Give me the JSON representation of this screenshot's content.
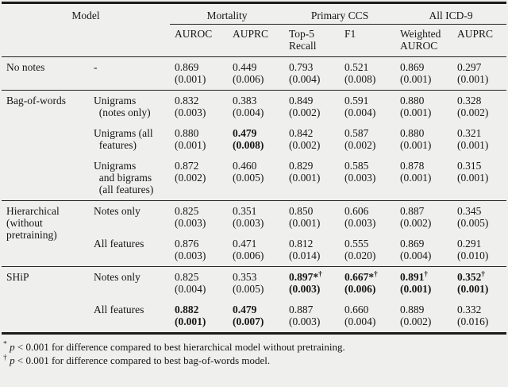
{
  "table": {
    "model_header": "Model",
    "groups": [
      {
        "label": "Mortality"
      },
      {
        "label": "Primary CCS"
      },
      {
        "label": "All ICD-9"
      }
    ],
    "columns": [
      "AUROC",
      "AUPRC",
      "Top-5\nRecall",
      "F1",
      "Weighted\nAUROC",
      "AUPRC"
    ],
    "sections": [
      {
        "model": "No notes",
        "rows": [
          {
            "variant": "-",
            "cells": [
              {
                "v": "0.869",
                "sd": "(0.001)"
              },
              {
                "v": "0.449",
                "sd": "(0.006)"
              },
              {
                "v": "0.793",
                "sd": "(0.004)"
              },
              {
                "v": "0.521",
                "sd": "(0.008)"
              },
              {
                "v": "0.869",
                "sd": "(0.001)"
              },
              {
                "v": "0.297",
                "sd": "(0.001)"
              }
            ]
          }
        ]
      },
      {
        "model": "Bag-of-words",
        "rows": [
          {
            "variant": "Unigrams\n  (notes only)",
            "cells": [
              {
                "v": "0.832",
                "sd": "(0.003)"
              },
              {
                "v": "0.383",
                "sd": "(0.004)"
              },
              {
                "v": "0.849",
                "sd": "(0.002)"
              },
              {
                "v": "0.591",
                "sd": "(0.004)"
              },
              {
                "v": "0.880",
                "sd": "(0.001)"
              },
              {
                "v": "0.328",
                "sd": "(0.002)"
              }
            ]
          },
          {
            "variant": "Unigrams (all\n  features)",
            "cells": [
              {
                "v": "0.880",
                "sd": "(0.001)"
              },
              {
                "v": "0.479",
                "sd": "(0.008)",
                "bold": true
              },
              {
                "v": "0.842",
                "sd": "(0.002)"
              },
              {
                "v": "0.587",
                "sd": "(0.002)"
              },
              {
                "v": "0.880",
                "sd": "(0.001)"
              },
              {
                "v": "0.321",
                "sd": "(0.001)"
              }
            ]
          },
          {
            "variant": "Unigrams\n  and bigrams\n  (all features)",
            "cells": [
              {
                "v": "0.872",
                "sd": "(0.002)"
              },
              {
                "v": "0.460",
                "sd": "(0.005)"
              },
              {
                "v": "0.829",
                "sd": "(0.001)"
              },
              {
                "v": "0.585",
                "sd": "(0.003)"
              },
              {
                "v": "0.878",
                "sd": "(0.001)"
              },
              {
                "v": "0.315",
                "sd": "(0.001)"
              }
            ]
          }
        ]
      },
      {
        "model": "Hierarchical\n(without\npretraining)",
        "rows": [
          {
            "variant": "Notes only",
            "cells": [
              {
                "v": "0.825",
                "sd": "(0.003)"
              },
              {
                "v": "0.351",
                "sd": "(0.003)"
              },
              {
                "v": "0.850",
                "sd": "(0.001)"
              },
              {
                "v": "0.606",
                "sd": "(0.003)"
              },
              {
                "v": "0.887",
                "sd": "(0.002)"
              },
              {
                "v": "0.345",
                "sd": "(0.005)"
              }
            ]
          },
          {
            "variant": "All features",
            "cells": [
              {
                "v": "0.876",
                "sd": "(0.003)"
              },
              {
                "v": "0.471",
                "sd": "(0.006)"
              },
              {
                "v": "0.812",
                "sd": "(0.014)"
              },
              {
                "v": "0.555",
                "sd": "(0.020)"
              },
              {
                "v": "0.869",
                "sd": "(0.004)"
              },
              {
                "v": "0.291",
                "sd": "(0.010)"
              }
            ]
          }
        ]
      },
      {
        "model": "SHiP",
        "rows": [
          {
            "variant": "Notes only",
            "cells": [
              {
                "v": "0.825",
                "sd": "(0.004)"
              },
              {
                "v": "0.353",
                "sd": "(0.005)"
              },
              {
                "v": "0.897*",
                "sup": "†",
                "sd": "(0.003)",
                "bold": true
              },
              {
                "v": "0.667*",
                "sup": "†",
                "sd": "(0.006)",
                "bold": true
              },
              {
                "v": "0.891",
                "sup": "†",
                "sd": "(0.001)",
                "bold": true
              },
              {
                "v": "0.352",
                "sup": "†",
                "sd": "(0.001)",
                "bold": true
              }
            ]
          },
          {
            "variant": "All features",
            "cells": [
              {
                "v": "0.882",
                "sd": "(0.001)",
                "bold": true
              },
              {
                "v": "0.479",
                "sd": "(0.007)",
                "bold": true
              },
              {
                "v": "0.887",
                "sd": "(0.003)"
              },
              {
                "v": "0.660",
                "sd": "(0.004)"
              },
              {
                "v": "0.889",
                "sd": "(0.002)"
              },
              {
                "v": "0.332",
                "sd": "(0.016)"
              }
            ]
          }
        ]
      }
    ]
  },
  "footnotes": [
    {
      "marker": "*",
      "pvar": "p",
      "text": "< 0.001 for difference compared to best hierarchical model without pretraining."
    },
    {
      "marker": "†",
      "pvar": "p",
      "text": "< 0.001 for difference compared to best bag-of-words model."
    }
  ]
}
